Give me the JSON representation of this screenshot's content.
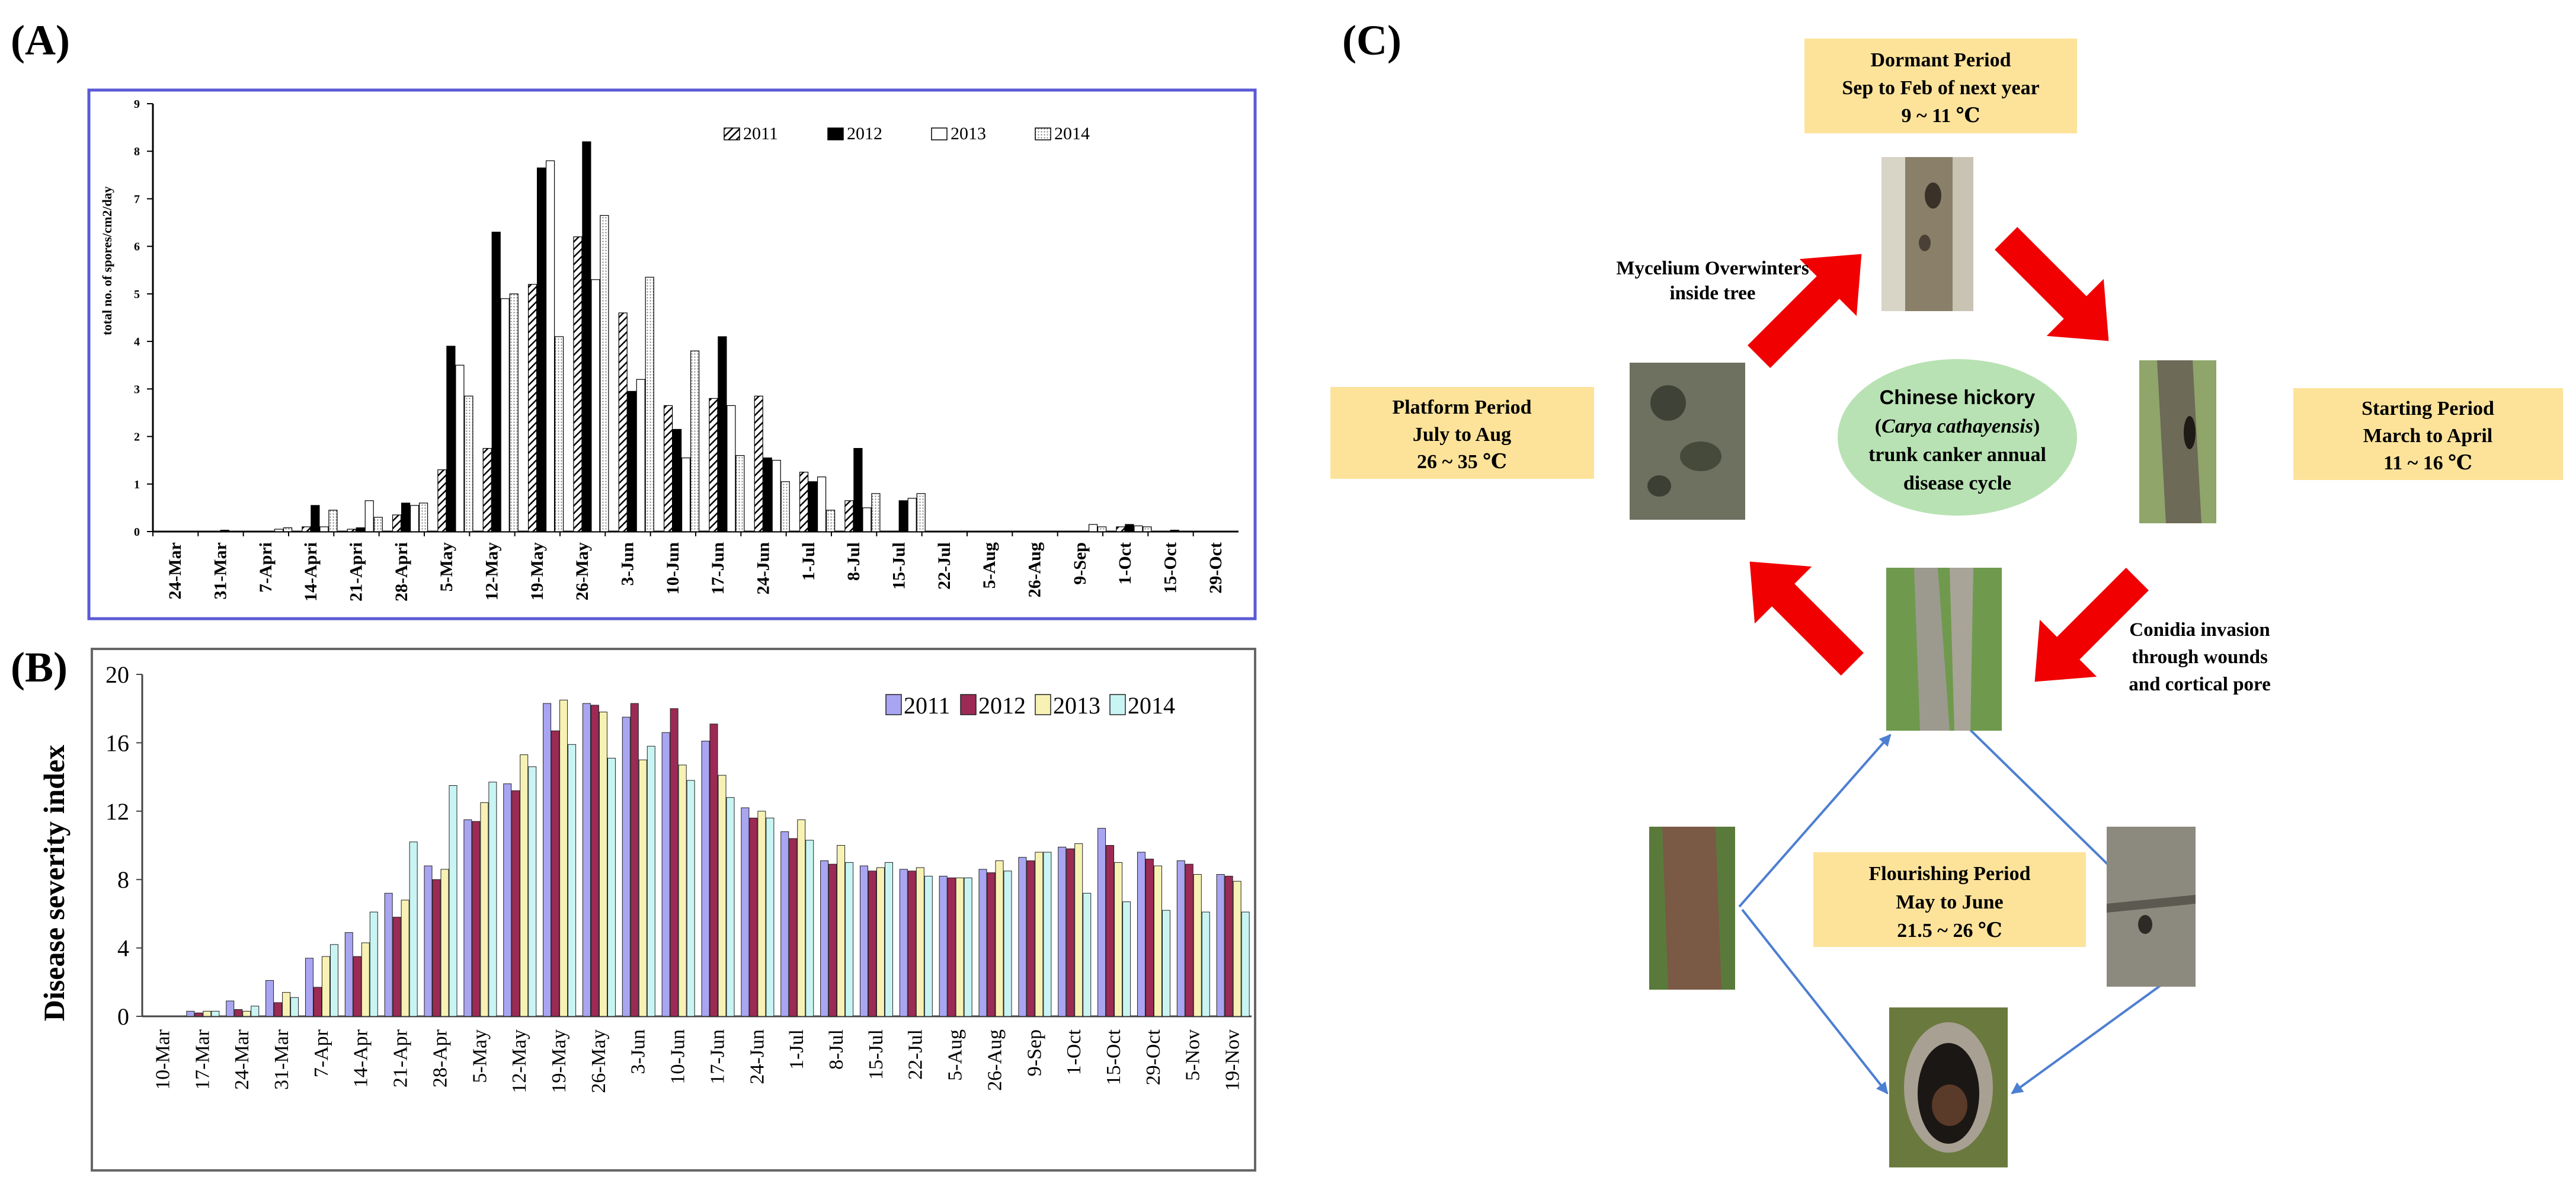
{
  "panel_labels": {
    "a": "(A)",
    "b": "(B)",
    "c": "(C)"
  },
  "colors": {
    "frame_a": "#5a5ad6",
    "frame_b": "#666666",
    "s2011_b": "#a9a5f2",
    "s2012_b": "#9c2a55",
    "s2013_b": "#f7f2b4",
    "s2014_b": "#c8f5f3",
    "box_fill": "#fde39a",
    "ellipse_fill": "#b8e2b3",
    "arrow_red": "#f00000",
    "arrow_blue": "#4d7fd1"
  },
  "chart_data": [
    {
      "type": "bar",
      "title": "",
      "xlabel": "",
      "ylabel": "total no. of spores/cm2/day",
      "ylim": [
        0,
        9
      ],
      "yticks": [
        0,
        1,
        2,
        3,
        4,
        5,
        6,
        7,
        8,
        9
      ],
      "grid": false,
      "legend": "top-right",
      "categories": [
        "24-Mar",
        "31-Mar",
        "7-Apri",
        "14-Apri",
        "21-Apri",
        "28-Apri",
        "5-May",
        "12-May",
        "19-May",
        "26-May",
        "3-Jun",
        "10-Jun",
        "17-Jun",
        "24-Jun",
        "1-Jul",
        "8-Jul",
        "15-Jul",
        "22-Jul",
        "5-Aug",
        "26-Aug",
        "9-Sep",
        "1-Oct",
        "15-Oct",
        "29-Oct"
      ],
      "series": [
        {
          "name": "2011",
          "values": [
            0,
            0,
            0,
            0.1,
            0.05,
            0.35,
            1.3,
            1.75,
            5.2,
            6.2,
            4.6,
            2.65,
            2.8,
            2.85,
            1.25,
            0.65,
            0,
            0,
            0,
            0,
            0,
            0.1,
            0,
            0
          ]
        },
        {
          "name": "2012",
          "values": [
            0,
            0.03,
            0,
            0.55,
            0.08,
            0.6,
            3.9,
            6.3,
            7.65,
            8.2,
            2.95,
            2.15,
            4.1,
            1.55,
            1.05,
            1.75,
            0.65,
            0,
            0,
            0,
            0,
            0.15,
            0.03,
            0
          ]
        },
        {
          "name": "2013",
          "values": [
            0,
            0,
            0.05,
            0.1,
            0.65,
            0.55,
            3.5,
            4.9,
            7.8,
            5.3,
            3.2,
            1.55,
            2.65,
            1.5,
            1.15,
            0.5,
            0.7,
            0,
            0,
            0,
            0.15,
            0.12,
            0,
            0
          ]
        },
        {
          "name": "2014",
          "values": [
            0,
            0,
            0.08,
            0.45,
            0.3,
            0.6,
            2.85,
            5.0,
            4.1,
            6.65,
            5.35,
            3.8,
            1.6,
            1.05,
            0.45,
            0.8,
            0.8,
            0,
            0,
            0,
            0.1,
            0.1,
            0,
            0
          ]
        }
      ]
    },
    {
      "type": "bar",
      "title": "",
      "xlabel": "",
      "ylabel": "Disease severity  index",
      "ylim": [
        0,
        20
      ],
      "yticks": [
        0,
        4,
        8,
        12,
        16,
        20
      ],
      "grid": false,
      "legend": "top-right",
      "categories": [
        "10-Mar",
        "17-Mar",
        "24-Mar",
        "31-Mar",
        "7-Apr",
        "14-Apr",
        "21-Apr",
        "28-Apr",
        "5-May",
        "12-May",
        "19-May",
        "26-May",
        "3-Jun",
        "10-Jun",
        "17-Jun",
        "24-Jun",
        "1-Jul",
        "8-Jul",
        "15-Jul",
        "22-Jul",
        "5-Aug",
        "26-Aug",
        "9-Sep",
        "1-Oct",
        "15-Oct",
        "29-Oct",
        "5-Nov",
        "19-Nov"
      ],
      "series": [
        {
          "name": "2011",
          "values": [
            0,
            0.3,
            0.9,
            2.1,
            3.4,
            4.9,
            7.2,
            8.8,
            11.5,
            13.6,
            18.3,
            18.3,
            17.5,
            16.6,
            16.1,
            12.2,
            10.8,
            9.1,
            8.8,
            8.6,
            8.2,
            8.6,
            9.3,
            9.9,
            11.0,
            9.6,
            9.1,
            8.3
          ]
        },
        {
          "name": "2012",
          "values": [
            0,
            0.2,
            0.4,
            0.8,
            1.7,
            3.5,
            5.8,
            8.0,
            11.4,
            13.2,
            16.7,
            18.2,
            18.3,
            18.0,
            17.1,
            11.6,
            10.4,
            8.9,
            8.5,
            8.5,
            8.1,
            8.4,
            9.1,
            9.8,
            10.0,
            9.2,
            8.9,
            8.2
          ]
        },
        {
          "name": "2013",
          "values": [
            0,
            0.3,
            0.3,
            1.4,
            3.5,
            4.3,
            6.8,
            8.6,
            12.5,
            15.3,
            18.5,
            17.8,
            15.0,
            14.7,
            14.1,
            12.0,
            11.5,
            10.0,
            8.7,
            8.7,
            8.1,
            9.1,
            9.6,
            10.1,
            9.0,
            8.8,
            8.3,
            7.9
          ]
        },
        {
          "name": "2014",
          "values": [
            0,
            0.3,
            0.6,
            1.1,
            4.2,
            6.1,
            10.2,
            13.5,
            13.7,
            14.6,
            15.9,
            15.1,
            15.8,
            13.8,
            12.8,
            11.6,
            10.3,
            9.0,
            9.0,
            8.2,
            8.1,
            8.5,
            9.6,
            7.2,
            6.7,
            6.2,
            6.1,
            6.1
          ]
        }
      ]
    }
  ],
  "panel_c": {
    "dormant": {
      "line1": "Dormant Period",
      "line2": "Sep to Feb of next year",
      "line3": "9 ~ 11 ℃"
    },
    "starting": {
      "line1": "Starting Period",
      "line2": "March to April",
      "line3": "11 ~ 16 ℃"
    },
    "platform": {
      "line1": "Platform Period",
      "line2": "July to Aug",
      "line3": "26 ~ 35 ℃"
    },
    "flourishing": {
      "line1": "Flourishing Period",
      "line2": "May to June",
      "line3": "21.5 ~ 26 ℃"
    },
    "center": {
      "line1": "Chinese hickory",
      "line2_open": "(",
      "line2_italic": "Carya cathayensis",
      "line2_close": ")",
      "line3": "trunk canker annual",
      "line4": "disease cycle"
    },
    "mycelium": {
      "line1": "Mycelium Overwinters",
      "line2": "inside tree"
    },
    "conidia": {
      "line1": "Conidia invasion",
      "line2": "through wounds",
      "line3": "and cortical pore"
    }
  }
}
